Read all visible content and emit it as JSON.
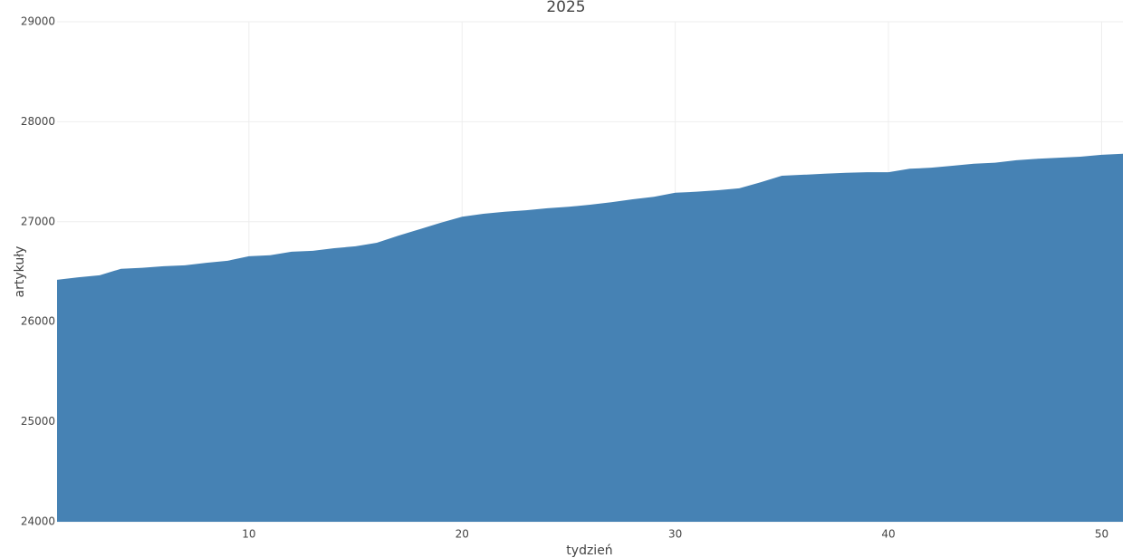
{
  "chart_data": {
    "type": "area",
    "title": "2025",
    "x_label": "tydzień",
    "y_label": "artykuły",
    "x": [
      1,
      2,
      3,
      4,
      5,
      6,
      7,
      8,
      9,
      10,
      11,
      12,
      13,
      14,
      15,
      16,
      17,
      18,
      19,
      20,
      21,
      22,
      23,
      24,
      25,
      26,
      27,
      28,
      29,
      30,
      31,
      32,
      33,
      34,
      35,
      36,
      37,
      38,
      39,
      40,
      41,
      42,
      43,
      44,
      45,
      46,
      47,
      48,
      49,
      50,
      51
    ],
    "series": [
      {
        "name": "artykuły",
        "color": "#4682b4",
        "values": [
          26420,
          26445,
          26465,
          26530,
          26540,
          26555,
          26565,
          26590,
          26610,
          26655,
          26665,
          26700,
          26710,
          26735,
          26755,
          26790,
          26860,
          26925,
          26990,
          27050,
          27080,
          27100,
          27115,
          27135,
          27150,
          27170,
          27195,
          27225,
          27250,
          27290,
          27300,
          27315,
          27335,
          27395,
          27460,
          27470,
          27480,
          27490,
          27495,
          27495,
          27530,
          27540,
          27560,
          27580,
          27590,
          27615,
          27630,
          27640,
          27650,
          27670,
          27680
        ]
      }
    ],
    "xlim": [
      1,
      51
    ],
    "ylim": [
      24000,
      29000
    ],
    "xticks": [
      10,
      20,
      30,
      40,
      50
    ],
    "yticks": [
      24000,
      25000,
      26000,
      27000,
      28000,
      29000
    ],
    "grid": true
  }
}
